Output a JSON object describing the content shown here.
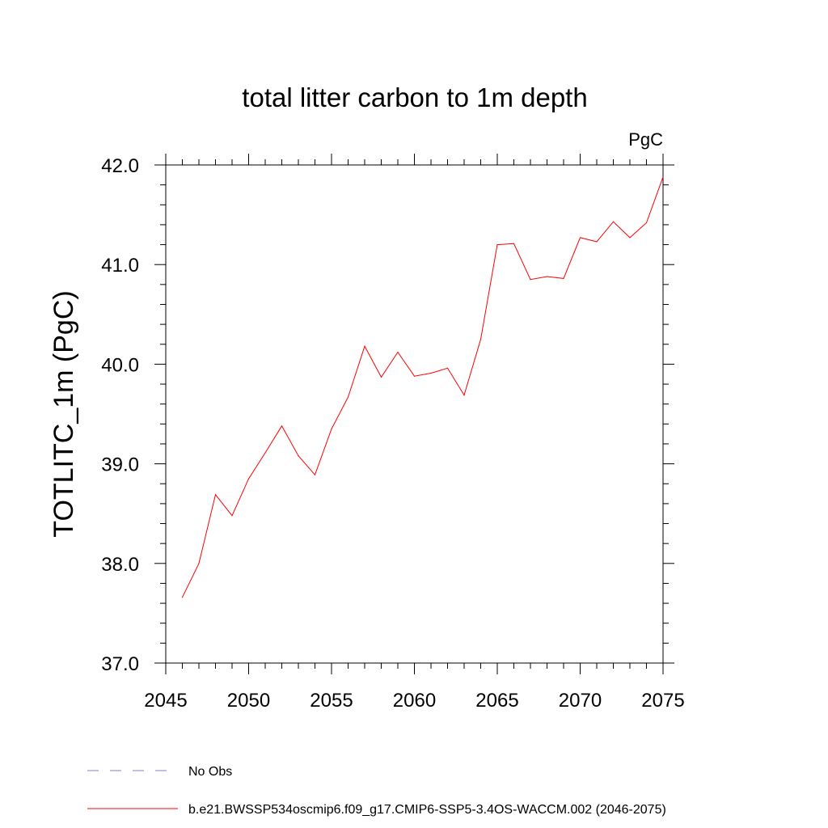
{
  "chart_data": {
    "type": "line",
    "title": "total litter carbon to 1m depth",
    "units": "PgC",
    "xlabel": "",
    "ylabel": "TOTLITC_1m  (PgC)",
    "xlim": [
      2045,
      2075
    ],
    "ylim": [
      37.0,
      42.0
    ],
    "x_ticks": [
      2045,
      2050,
      2055,
      2060,
      2065,
      2070,
      2075
    ],
    "x_tick_labels": [
      "2045",
      "2050",
      "2055",
      "2060",
      "2065",
      "2070",
      "2075"
    ],
    "y_ticks": [
      37.0,
      38.0,
      39.0,
      40.0,
      41.0,
      42.0
    ],
    "y_tick_labels": [
      "37.0",
      "38.0",
      "39.0",
      "40.0",
      "41.0",
      "42.0"
    ],
    "grid": false,
    "legend_position": "bottom-left, below plot",
    "series": [
      {
        "name": "b.e21.BWSSP534oscmip6.f09_g17.CMIP6-SSP5-3.4OS-WACCM.002 (2046-2075)",
        "color": "#ff0000",
        "style": "solid",
        "x": [
          2046,
          2047,
          2048,
          2049,
          2050,
          2051,
          2052,
          2053,
          2054,
          2055,
          2056,
          2057,
          2058,
          2059,
          2060,
          2061,
          2062,
          2063,
          2064,
          2065,
          2066,
          2067,
          2068,
          2069,
          2070,
          2071,
          2072,
          2073,
          2074,
          2075
        ],
        "values": [
          37.66,
          38.0,
          38.69,
          38.48,
          38.85,
          39.11,
          39.38,
          39.08,
          38.89,
          39.35,
          39.67,
          40.18,
          39.87,
          40.12,
          39.88,
          39.91,
          39.96,
          39.69,
          40.25,
          41.2,
          41.21,
          40.85,
          40.88,
          40.86,
          41.27,
          41.23,
          41.43,
          41.27,
          41.42,
          41.88
        ]
      },
      {
        "name": "No Obs",
        "color": "#7f7fd6",
        "style": "dashed",
        "x": [],
        "values": []
      }
    ]
  }
}
